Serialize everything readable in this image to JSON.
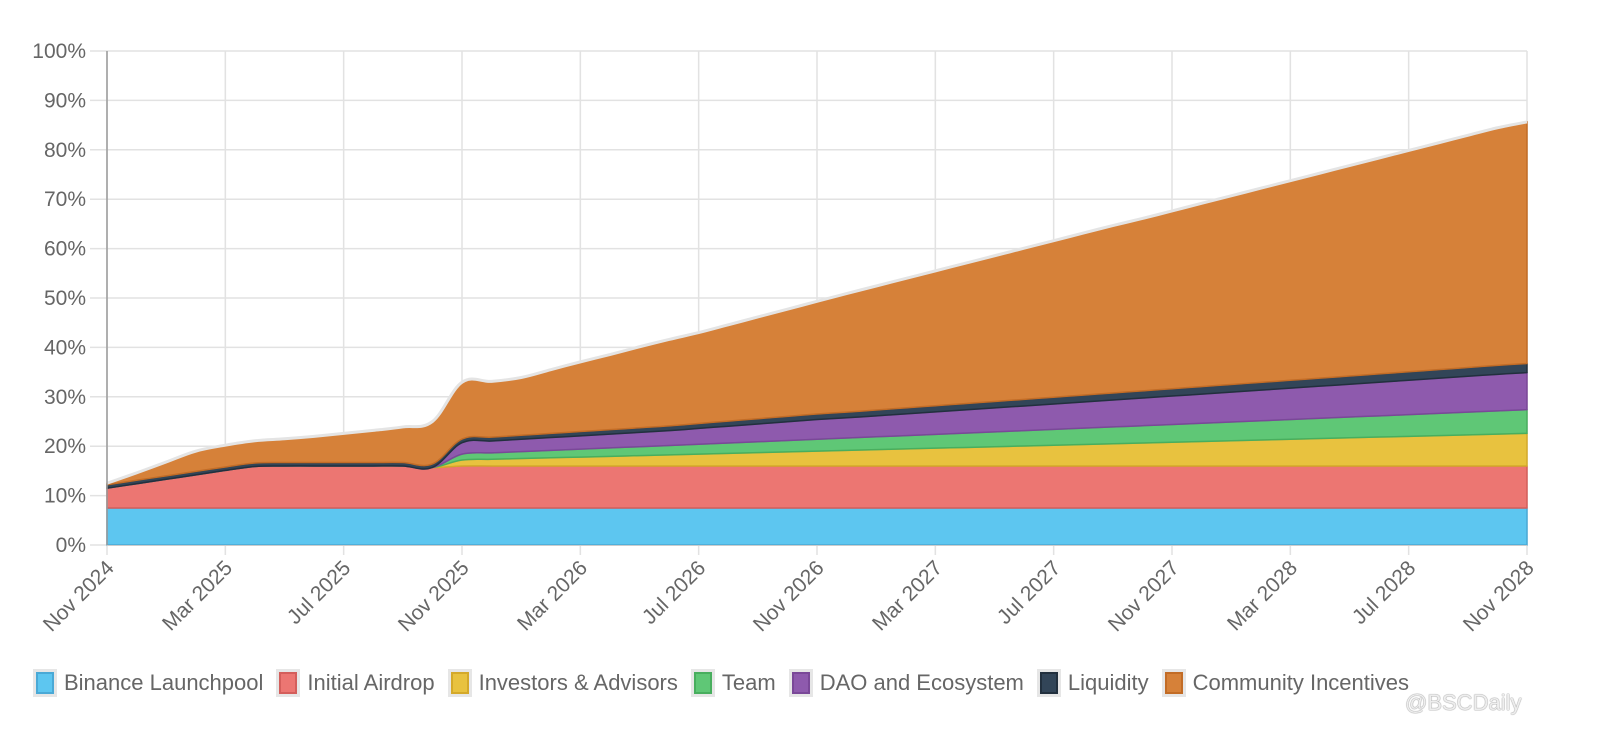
{
  "chart_data": {
    "type": "area",
    "stacked": true,
    "title": "",
    "xlabel": "",
    "ylabel": "",
    "ylim": [
      0,
      100
    ],
    "y_ticks": [
      "0%",
      "10%",
      "20%",
      "30%",
      "40%",
      "50%",
      "60%",
      "70%",
      "80%",
      "90%",
      "100%"
    ],
    "x_ticks": [
      "Nov 2024",
      "Mar 2025",
      "Jul 2025",
      "Nov 2025",
      "Mar 2026",
      "Jul 2026",
      "Nov 2026",
      "Mar 2027",
      "Jul 2027",
      "Nov 2027",
      "Mar 2028",
      "Jul 2028",
      "Nov 2028"
    ],
    "x_months": 48,
    "grid": true,
    "legend_position": "bottom",
    "series": [
      {
        "name": "Binance Launchpool",
        "color": "#5dc6f0",
        "border": "#4aa9d6",
        "values": [
          7.5,
          7.5,
          7.5,
          7.5,
          7.5,
          7.5,
          7.5,
          7.5,
          7.5,
          7.5,
          7.5,
          7.5,
          7.5,
          7.5,
          7.5,
          7.5,
          7.5,
          7.5,
          7.5,
          7.5,
          7.5,
          7.5,
          7.5,
          7.5,
          7.5,
          7.5,
          7.5,
          7.5,
          7.5,
          7.5,
          7.5,
          7.5,
          7.5,
          7.5,
          7.5,
          7.5,
          7.5,
          7.5,
          7.5,
          7.5,
          7.5,
          7.5,
          7.5,
          7.5,
          7.5,
          7.5,
          7.5,
          7.5,
          7.5
        ]
      },
      {
        "name": "Initial Airdrop",
        "color": "#ec7672",
        "border": "#d45e5b",
        "values": [
          4.0,
          4.9,
          5.8,
          6.7,
          7.6,
          8.4,
          8.5,
          8.5,
          8.5,
          8.5,
          8.5,
          8.2,
          8.5,
          8.5,
          8.5,
          8.5,
          8.5,
          8.5,
          8.5,
          8.5,
          8.5,
          8.5,
          8.5,
          8.5,
          8.5,
          8.5,
          8.5,
          8.5,
          8.5,
          8.5,
          8.5,
          8.5,
          8.5,
          8.5,
          8.5,
          8.5,
          8.5,
          8.5,
          8.5,
          8.5,
          8.5,
          8.5,
          8.5,
          8.5,
          8.5,
          8.5,
          8.5,
          8.5,
          8.5
        ]
      },
      {
        "name": "Investors & Advisors",
        "color": "#e8c23f",
        "border": "#d4a92a",
        "values": [
          0,
          0,
          0,
          0,
          0,
          0,
          0,
          0,
          0,
          0,
          0,
          0,
          1.2,
          1.35,
          1.5,
          1.65,
          1.8,
          1.95,
          2.1,
          2.25,
          2.4,
          2.55,
          2.7,
          2.85,
          3.0,
          3.15,
          3.3,
          3.45,
          3.6,
          3.75,
          3.9,
          4.05,
          4.2,
          4.35,
          4.5,
          4.65,
          4.8,
          4.95,
          5.1,
          5.25,
          5.4,
          5.55,
          5.7,
          5.85,
          6.0,
          6.15,
          6.3,
          6.45,
          6.6
        ]
      },
      {
        "name": "Team",
        "color": "#5fc776",
        "border": "#48ae5e",
        "values": [
          0,
          0,
          0,
          0,
          0,
          0,
          0,
          0,
          0,
          0,
          0,
          0,
          1.2,
          1.3,
          1.4,
          1.5,
          1.6,
          1.7,
          1.8,
          1.9,
          2.0,
          2.1,
          2.2,
          2.3,
          2.4,
          2.5,
          2.6,
          2.7,
          2.8,
          2.9,
          3.0,
          3.1,
          3.2,
          3.3,
          3.4,
          3.5,
          3.6,
          3.7,
          3.8,
          3.9,
          4.0,
          4.1,
          4.2,
          4.3,
          4.4,
          4.5,
          4.6,
          4.7,
          4.8
        ]
      },
      {
        "name": "DAO and Ecosystem",
        "color": "#8e5aad",
        "border": "#7a4898",
        "values": [
          0,
          0,
          0,
          0,
          0,
          0,
          0,
          0,
          0,
          0,
          0,
          0,
          2.3,
          2.4,
          2.5,
          2.6,
          2.7,
          2.8,
          2.9,
          3.0,
          3.2,
          3.4,
          3.6,
          3.8,
          4.0,
          4.1,
          4.25,
          4.4,
          4.55,
          4.7,
          4.85,
          5.0,
          5.15,
          5.3,
          5.45,
          5.6,
          5.75,
          5.9,
          6.05,
          6.2,
          6.35,
          6.5,
          6.65,
          6.8,
          6.95,
          7.1,
          7.25,
          7.4,
          7.5
        ]
      },
      {
        "name": "Liquidity",
        "color": "#324558",
        "border": "#22303e",
        "values": [
          0.7,
          0.7,
          0.7,
          0.7,
          0.7,
          0.7,
          0.7,
          0.7,
          0.7,
          0.7,
          0.7,
          0.7,
          0.75,
          0.78,
          0.81,
          0.84,
          0.87,
          0.9,
          0.93,
          0.96,
          1.0,
          1.03,
          1.06,
          1.09,
          1.12,
          1.15,
          1.18,
          1.21,
          1.24,
          1.27,
          1.3,
          1.33,
          1.36,
          1.39,
          1.42,
          1.45,
          1.48,
          1.51,
          1.54,
          1.57,
          1.6,
          1.63,
          1.66,
          1.69,
          1.72,
          1.75,
          1.78,
          1.81,
          1.84
        ]
      },
      {
        "name": "Community Incentives",
        "color": "#d68139",
        "border": "#c26c26",
        "values": [
          0.3,
          1.5,
          2.8,
          4.1,
          4.4,
          4.5,
          4.8,
          5.3,
          5.9,
          6.5,
          7.2,
          8.6,
          11.5,
          11.3,
          11.7,
          12.9,
          14.1,
          15.2,
          16.4,
          17.5,
          18.4,
          19.5,
          20.6,
          21.7,
          22.8,
          24.0,
          25.1,
          26.2,
          27.3,
          28.4,
          29.5,
          30.6,
          31.7,
          32.8,
          33.9,
          34.9,
          36.0,
          37.1,
          38.2,
          39.3,
          40.4,
          41.5,
          42.6,
          43.7,
          44.8,
          45.9,
          47.0,
          48.1,
          48.9
        ]
      }
    ]
  },
  "legend": {
    "items": [
      {
        "label": "Binance Launchpool"
      },
      {
        "label": "Initial Airdrop"
      },
      {
        "label": "Investors & Advisors"
      },
      {
        "label": "Team"
      },
      {
        "label": "DAO and Ecosystem"
      },
      {
        "label": "Liquidity"
      },
      {
        "label": "Community Incentives"
      }
    ]
  },
  "watermark": "@BSCDaily"
}
